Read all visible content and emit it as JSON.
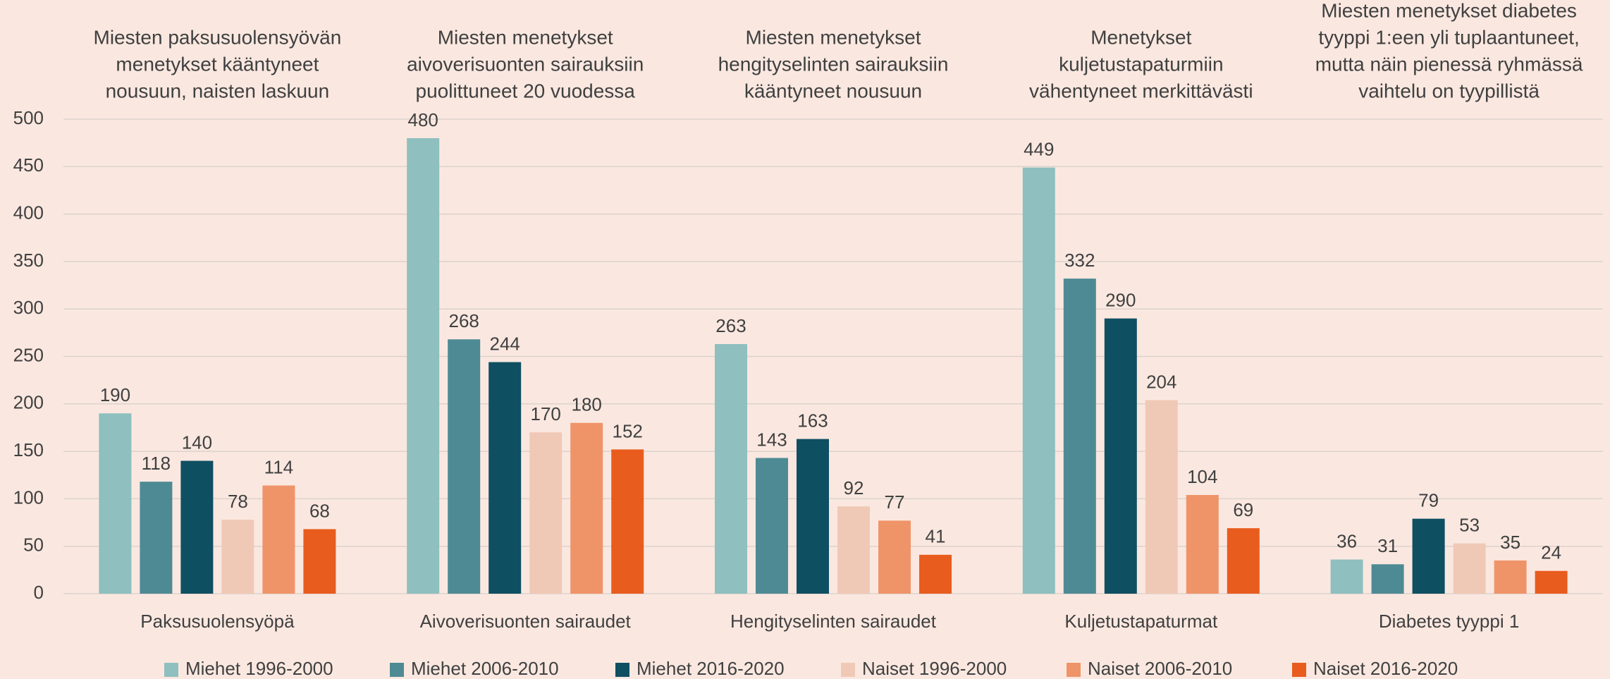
{
  "chart_data": {
    "type": "bar",
    "categories": [
      "Paksusuolensyöpä",
      "Aivoverisuonten sairaudet",
      "Hengityselinten sairaudet",
      "Kuljetustapaturmat",
      "Diabetes tyyppi 1"
    ],
    "annotations": [
      [
        "Miesten paksusuolensyövän",
        "menetykset kääntyneet",
        "nousuun, naisten laskuun"
      ],
      [
        "Miesten menetykset",
        "aivoverisuonten sairauksiin",
        "puolittuneet 20 vuodessa"
      ],
      [
        "Miesten menetykset",
        "hengityselinten sairauksiin",
        "kääntyneet nousuun"
      ],
      [
        "Menetykset",
        "kuljetustapaturmiin",
        "vähentyneet merkittävästi"
      ],
      [
        "Miesten menetykset diabetes",
        "tyyppi 1:een yli tuplaantuneet,",
        "mutta näin pienessä ryhmässä",
        "vaihtelu on tyypillistä"
      ]
    ],
    "series": [
      {
        "name": "Miehet 1996-2000",
        "color": "#8fbfbf",
        "values": [
          190,
          480,
          263,
          449,
          36
        ]
      },
      {
        "name": "Miehet 2006-2010",
        "color": "#4e8a94",
        "values": [
          118,
          268,
          143,
          332,
          31
        ]
      },
      {
        "name": "Miehet 2016-2020",
        "color": "#0f4f62",
        "values": [
          140,
          244,
          163,
          290,
          79
        ]
      },
      {
        "name": "Naiset 1996-2000",
        "color": "#f0c9b6",
        "values": [
          78,
          170,
          92,
          204,
          53
        ]
      },
      {
        "name": "Naiset 2006-2010",
        "color": "#ef9468",
        "values": [
          114,
          180,
          77,
          104,
          35
        ]
      },
      {
        "name": "Naiset 2016-2020",
        "color": "#e85c1e",
        "values": [
          68,
          152,
          41,
          69,
          24
        ]
      }
    ],
    "ylim": [
      0,
      500
    ],
    "yticks": [
      0,
      50,
      100,
      150,
      200,
      250,
      300,
      350,
      400,
      450,
      500
    ],
    "grid": true,
    "legend": "bottom"
  }
}
